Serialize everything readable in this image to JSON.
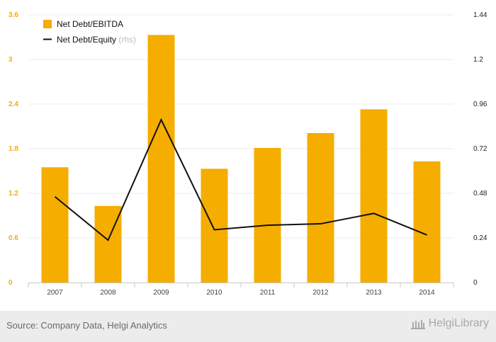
{
  "chart_data": {
    "type": "bar",
    "categories": [
      "2007",
      "2008",
      "2009",
      "2010",
      "2011",
      "2012",
      "2013",
      "2014"
    ],
    "series": [
      {
        "name": "Net Debt/EBITDA",
        "type": "bar",
        "axis": "left",
        "color": "#f5ad00",
        "values": [
          1.55,
          1.03,
          3.33,
          1.53,
          1.81,
          2.01,
          2.33,
          1.63
        ]
      },
      {
        "name": "Net Debt/Equity",
        "type": "line",
        "axis": "right",
        "color": "#111111",
        "values": [
          0.462,
          0.228,
          0.876,
          0.284,
          0.308,
          0.316,
          0.372,
          0.256
        ]
      }
    ],
    "legend": {
      "items": [
        "Net Debt/EBITDA",
        "Net Debt/Equity"
      ],
      "rhs_note": "(rhs)",
      "placement": "top-left"
    },
    "y_left": {
      "ticks": [
        "0",
        "0.6",
        "1.2",
        "1.8",
        "2.4",
        "3",
        "3.6"
      ],
      "range": [
        0,
        3.6
      ],
      "color": "#f5ad00"
    },
    "y_right": {
      "ticks": [
        "0",
        "0.24",
        "0.48",
        "0.72",
        "0.96",
        "1.2",
        "1.44"
      ],
      "range": [
        0,
        1.44
      ]
    },
    "grid": true
  },
  "footer": {
    "source": "Source: Company Data, Helgi Analytics",
    "brand": "HelgiLibrary",
    "brand_icon": "library-building-icon"
  }
}
